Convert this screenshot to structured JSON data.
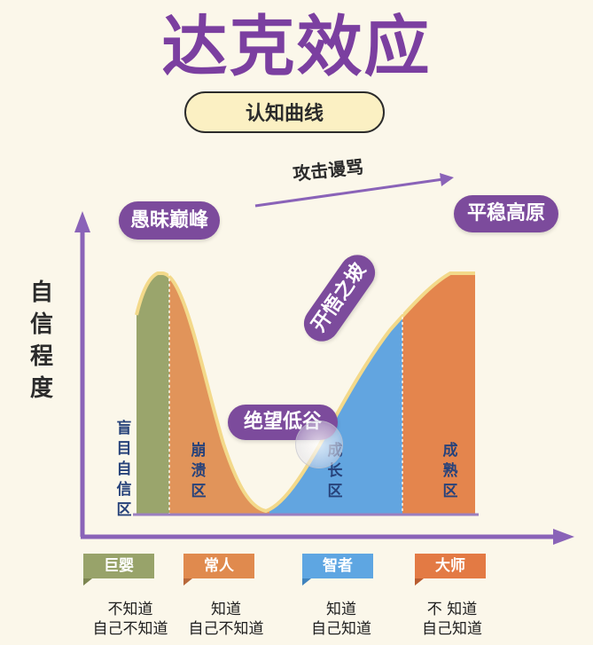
{
  "title": "达克效应",
  "subtitle": "认知曲线",
  "arrow_label": "攻击谩骂",
  "y_axis_label": "自信程度",
  "labels": {
    "peak": "愚昧巅峰",
    "valley": "绝望低谷",
    "slope": "开悟之坡",
    "plateau": "平稳高原"
  },
  "zones": [
    {
      "text": "盲目自信区",
      "color": "#98a36a"
    },
    {
      "text": "崩溃区",
      "color": "#e08a4e"
    },
    {
      "text": "成长区",
      "color": "#5ea6e2"
    },
    {
      "text": "成熟区",
      "color": "#e37a44"
    }
  ],
  "categories": [
    {
      "tag": "巨婴",
      "line1": "不知道",
      "line2": "自己不知道",
      "color": "#98a36a"
    },
    {
      "tag": "常人",
      "line1": "知道",
      "line2": "自己不知道",
      "color": "#e08a4e"
    },
    {
      "tag": "智者",
      "line1": "知道",
      "line2": "自己知道",
      "color": "#5ea6e2"
    },
    {
      "tag": "大师",
      "line1": "不 知道",
      "line2": "自己知道",
      "color": "#e37a44"
    }
  ],
  "colors": {
    "axis": "#8a63b8",
    "accent": "#7c4b9c",
    "curve_outline": "#f3d98a"
  }
}
